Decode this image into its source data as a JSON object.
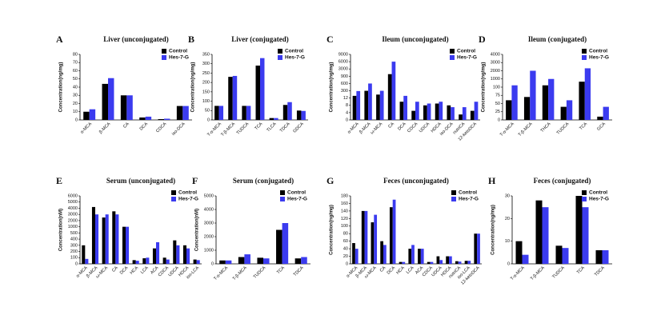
{
  "chart_data": [
    {
      "type": "bar",
      "label": "A",
      "title": "Liver (unconjugated)",
      "ylabel": "Concentration(ng/mg)",
      "categories": [
        "α-MCA",
        "β-MCA",
        "CA",
        "DCA",
        "CDCA",
        "iso-DCA"
      ],
      "series": [
        {
          "name": "Control",
          "color": "#000000",
          "values": [
            10,
            44,
            30,
            3,
            1,
            17
          ]
        },
        {
          "name": "Hes-7-G",
          "color": "#3b3bef",
          "values": [
            13,
            51,
            30,
            4,
            1.5,
            17
          ]
        }
      ],
      "ylim": [
        0,
        80
      ],
      "yticks": [
        0,
        10,
        20,
        30,
        40,
        50,
        60,
        70,
        80
      ]
    },
    {
      "type": "bar",
      "label": "B",
      "title": "Liver (conjugated)",
      "ylabel": "Concentration(ng/mg)",
      "categories": [
        "T-α-MCA",
        "T-β-MCA",
        "TUDCA",
        "TCA",
        "TLCA",
        "TDCA",
        "GDCA"
      ],
      "series": [
        {
          "name": "Control",
          "color": "#000000",
          "values": [
            75,
            230,
            75,
            290,
            10,
            80,
            50
          ]
        },
        {
          "name": "Hes-7-G",
          "color": "#3b3bef",
          "values": [
            75,
            235,
            75,
            330,
            10,
            95,
            48
          ]
        }
      ],
      "ylim": [
        0,
        350
      ],
      "yticks": [
        0,
        50,
        100,
        150,
        200,
        250,
        300,
        350
      ]
    },
    {
      "type": "bar",
      "label": "C",
      "title": "Ileum (unconjugated)",
      "ylabel": "Concentration(ng/mg)",
      "categories": [
        "α-MCA",
        "β-MCA",
        "ω-MCA",
        "CA",
        "DCA",
        "CDCA",
        "UDCA",
        "HDCA",
        "iso-DCA",
        "nutriCA",
        "12-ketoDCA"
      ],
      "series": [
        {
          "name": "Control",
          "color": "#000000",
          "values": [
            100,
            300,
            150,
            1500,
            10,
            5,
            8,
            9,
            8,
            3,
            5
          ]
        },
        {
          "name": "Hes-7-G",
          "color": "#3b3bef",
          "values": [
            290,
            600,
            300,
            6000,
            100,
            10,
            9,
            10,
            7,
            7,
            10
          ]
        }
      ],
      "ylim": [
        0,
        9000
      ],
      "yticks": [
        0,
        4,
        8,
        12,
        300,
        600,
        900,
        3000,
        6000,
        9000
      ]
    },
    {
      "type": "bar",
      "label": "D",
      "title": "Ileum (conjugated)",
      "ylabel": "Concentration(ng/mg)",
      "categories": [
        "T-α-MCA",
        "T-β-MCA",
        "THCA",
        "TUDCA",
        "TCA",
        "GCA"
      ],
      "series": [
        {
          "name": "Control",
          "color": "#000000",
          "values": [
            60,
            70,
            300,
            40,
            700,
            10
          ]
        },
        {
          "name": "Hes-7-G",
          "color": "#3b3bef",
          "values": [
            300,
            2000,
            1000,
            60,
            2300,
            40
          ]
        }
      ],
      "ylim": [
        0,
        4000
      ],
      "yticks": [
        0,
        25,
        50,
        75,
        100,
        1000,
        2000,
        3000,
        4000
      ]
    },
    {
      "type": "bar",
      "label": "E",
      "title": "Serum (unconjugated)",
      "ylabel": "Concentration(nM)",
      "categories": [
        "α-MCA",
        "β-MCA",
        "ω-MCA",
        "CA",
        "DCA",
        "HCA",
        "LCA",
        "ACA",
        "CDCA",
        "UDCA",
        "HDCA",
        "iso-LCA"
      ],
      "series": [
        {
          "name": "Control",
          "color": "#000000",
          "values": [
            300,
            4200,
            2500,
            3500,
            1000,
            60,
            90,
            250,
            100,
            380,
            300,
            70
          ]
        },
        {
          "name": "Hes-7-G",
          "color": "#3b3bef",
          "values": [
            80,
            3000,
            3000,
            3000,
            1000,
            50,
            100,
            350,
            70,
            300,
            250,
            60
          ]
        }
      ],
      "ylim": [
        0,
        6000
      ],
      "yticks": [
        0,
        100,
        200,
        300,
        400,
        500,
        1000,
        2000,
        3000,
        4000,
        5000,
        6000
      ]
    },
    {
      "type": "bar",
      "label": "F",
      "title": "Serum (conjugated)",
      "ylabel": "Concentration(nM)",
      "categories": [
        "T-α-MCA",
        "T-β-MCA",
        "TUDCA",
        "TCA",
        "TDCA"
      ],
      "series": [
        {
          "name": "Control",
          "color": "#000000",
          "values": [
            250,
            500,
            450,
            2500,
            400
          ]
        },
        {
          "name": "Hes-7-G",
          "color": "#3b3bef",
          "values": [
            250,
            700,
            400,
            3000,
            500
          ]
        }
      ],
      "ylim": [
        0,
        5000
      ],
      "yticks": [
        0,
        1000,
        2000,
        3000,
        4000,
        5000
      ]
    },
    {
      "type": "bar",
      "label": "G",
      "title": "Feces (unconjugated)",
      "ylabel": "Concentration(ng/mg)",
      "categories": [
        "α-MCA",
        "β-MCA",
        "ω-MCA",
        "CA",
        "DCA",
        "HCA",
        "LCA",
        "ACA",
        "CDCA",
        "UDCA",
        "HDCA",
        "nutriCA",
        "iso-LCA",
        "12-ketoDCA"
      ],
      "series": [
        {
          "name": "Control",
          "color": "#000000",
          "values": [
            55,
            140,
            110,
            60,
            150,
            5,
            40,
            40,
            5,
            20,
            20,
            7,
            8,
            80
          ]
        },
        {
          "name": "Hes-7-G",
          "color": "#3b3bef",
          "values": [
            40,
            140,
            130,
            50,
            170,
            5,
            50,
            40,
            5,
            10,
            20,
            6,
            8,
            80
          ]
        }
      ],
      "ylim": [
        0,
        180
      ],
      "yticks": [
        0,
        20,
        40,
        60,
        80,
        100,
        120,
        140,
        160,
        180
      ]
    },
    {
      "type": "bar",
      "label": "H",
      "title": "Feces (conjugated)",
      "ylabel": "Concentration(ng/mg)",
      "categories": [
        "T-α-MCA",
        "T-β-MCA",
        "TUDCA",
        "TCA",
        "TDCA"
      ],
      "series": [
        {
          "name": "Control",
          "color": "#000000",
          "values": [
            10,
            28,
            8,
            30,
            6
          ]
        },
        {
          "name": "Hes-7-G",
          "color": "#3b3bef",
          "values": [
            4,
            25,
            7,
            25,
            6
          ]
        }
      ],
      "ylim": [
        0,
        30
      ],
      "yticks": [
        0,
        10,
        20,
        30
      ]
    }
  ]
}
